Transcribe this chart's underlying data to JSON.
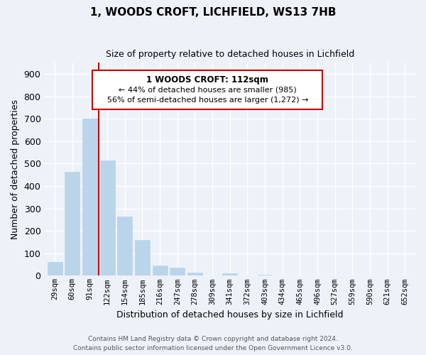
{
  "title": "1, WOODS CROFT, LICHFIELD, WS13 7HB",
  "subtitle": "Size of property relative to detached houses in Lichfield",
  "xlabel": "Distribution of detached houses by size in Lichfield",
  "ylabel": "Number of detached properties",
  "categories": [
    "29sqm",
    "60sqm",
    "91sqm",
    "122sqm",
    "154sqm",
    "185sqm",
    "216sqm",
    "247sqm",
    "278sqm",
    "309sqm",
    "341sqm",
    "372sqm",
    "403sqm",
    "434sqm",
    "465sqm",
    "496sqm",
    "527sqm",
    "559sqm",
    "590sqm",
    "621sqm",
    "652sqm"
  ],
  "values": [
    60,
    465,
    700,
    515,
    265,
    160,
    47,
    35,
    15,
    0,
    10,
    0,
    5,
    0,
    0,
    0,
    0,
    0,
    0,
    0,
    0
  ],
  "bar_color": "#bad4ea",
  "bar_edge_color": "#bad4ea",
  "vline_color": "#cc0000",
  "vline_x_idx": 2.5,
  "annotation_title": "1 WOODS CROFT: 112sqm",
  "annotation_line1": "← 44% of detached houses are smaller (985)",
  "annotation_line2": "56% of semi-detached houses are larger (1,272) →",
  "annotation_box_edge": "#cc0000",
  "ylim": [
    0,
    950
  ],
  "yticks": [
    0,
    100,
    200,
    300,
    400,
    500,
    600,
    700,
    800,
    900
  ],
  "footer1": "Contains HM Land Registry data © Crown copyright and database right 2024.",
  "footer2": "Contains public sector information licensed under the Open Government Licence v3.0.",
  "bg_color": "#edf2f9"
}
